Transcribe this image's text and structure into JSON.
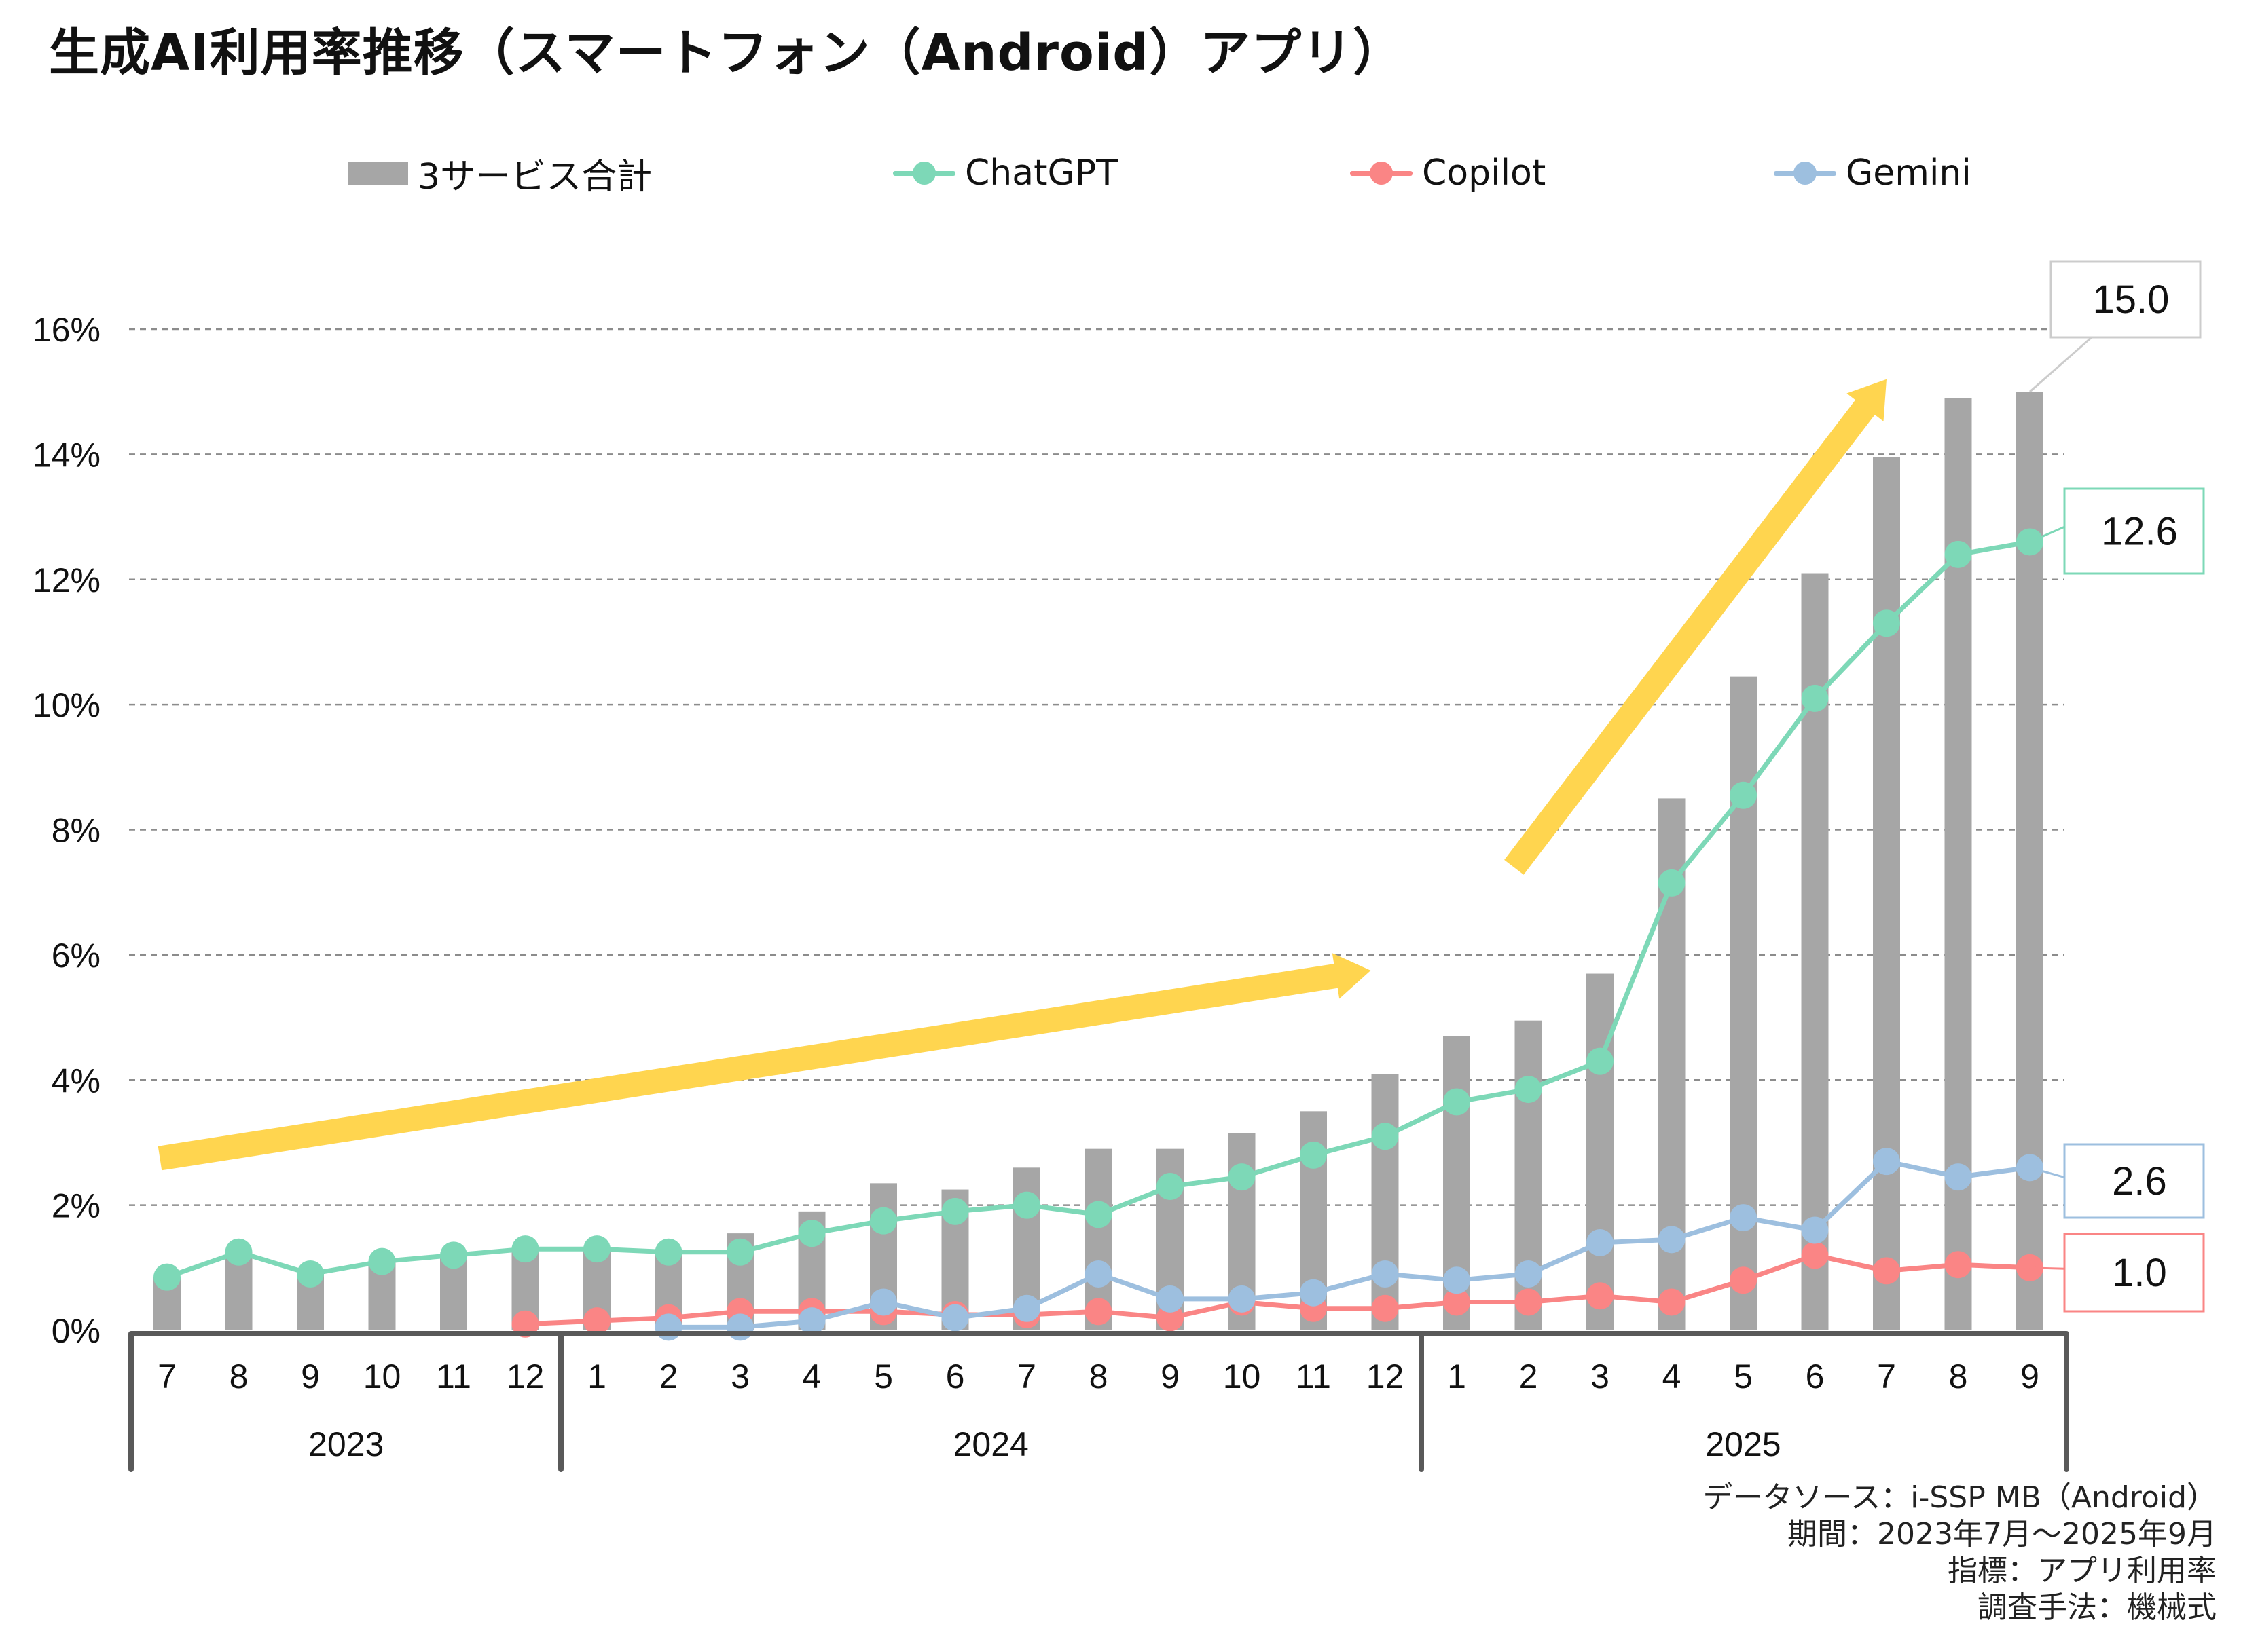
{
  "chart_data": {
    "type": "bar+line",
    "title": "生成AI利用率推移（スマートフォン（Android）アプリ）",
    "ylim": [
      0,
      16
    ],
    "yticks": [
      0,
      2,
      4,
      6,
      8,
      10,
      12,
      14,
      16
    ],
    "ytick_labels": [
      "0%",
      "2%",
      "4%",
      "6%",
      "8%",
      "10%",
      "12%",
      "14%",
      "16%"
    ],
    "grid": "dashed horizontal",
    "months": [
      "7",
      "8",
      "9",
      "10",
      "11",
      "12",
      "1",
      "2",
      "3",
      "4",
      "5",
      "6",
      "7",
      "8",
      "9",
      "10",
      "11",
      "12",
      "1",
      "2",
      "3",
      "4",
      "5",
      "6",
      "7",
      "8",
      "9"
    ],
    "years": [
      {
        "label": "2023",
        "start": 0,
        "end": 5
      },
      {
        "label": "2024",
        "start": 6,
        "end": 17
      },
      {
        "label": "2025",
        "start": 18,
        "end": 26
      }
    ],
    "legend": [
      {
        "name": "3サービス合計",
        "kind": "bar",
        "color": "#a6a6a6"
      },
      {
        "name": "ChatGPT",
        "kind": "line",
        "color": "#7dd8b7"
      },
      {
        "name": "Copilot",
        "kind": "line",
        "color": "#fa8585"
      },
      {
        "name": "Gemini",
        "kind": "line",
        "color": "#9dbfdf"
      }
    ],
    "series": [
      {
        "name": "3サービス合計",
        "kind": "bar",
        "color": "#a6a6a6",
        "values": [
          0.85,
          1.25,
          0.9,
          1.1,
          1.2,
          1.3,
          1.3,
          1.3,
          1.55,
          1.9,
          2.35,
          2.25,
          2.6,
          2.9,
          2.9,
          3.15,
          3.5,
          4.1,
          4.7,
          4.95,
          5.7,
          8.5,
          10.45,
          12.1,
          13.95,
          14.9,
          15.0
        ]
      },
      {
        "name": "ChatGPT",
        "kind": "line",
        "color": "#7dd8b7",
        "values": [
          0.85,
          1.25,
          0.9,
          1.1,
          1.2,
          1.3,
          1.3,
          1.25,
          1.25,
          1.55,
          1.75,
          1.9,
          2.0,
          1.85,
          2.3,
          2.45,
          2.8,
          3.1,
          3.65,
          3.85,
          4.3,
          7.15,
          8.55,
          10.1,
          11.3,
          12.4,
          12.6
        ]
      },
      {
        "name": "Copilot",
        "kind": "line",
        "color": "#fa8585",
        "values": [
          null,
          null,
          null,
          null,
          null,
          0.1,
          0.15,
          0.2,
          0.3,
          0.3,
          0.3,
          0.25,
          0.25,
          0.3,
          0.2,
          0.45,
          0.35,
          0.35,
          0.45,
          0.45,
          0.55,
          0.45,
          0.8,
          1.2,
          0.95,
          1.05,
          1.0
        ]
      },
      {
        "name": "Gemini",
        "kind": "line",
        "color": "#9dbfdf",
        "values": [
          null,
          null,
          null,
          null,
          null,
          null,
          null,
          0.05,
          0.05,
          0.15,
          0.45,
          0.2,
          0.35,
          0.9,
          0.5,
          0.5,
          0.6,
          0.9,
          0.8,
          0.9,
          1.4,
          1.45,
          1.8,
          1.6,
          2.7,
          2.45,
          2.6
        ]
      }
    ],
    "callouts": [
      {
        "series": "3サービス合計",
        "label": "15.0",
        "border": "#cccccc"
      },
      {
        "series": "ChatGPT",
        "label": "12.6",
        "border": "#7dd8b7"
      },
      {
        "series": "Gemini",
        "label": "2.6",
        "border": "#9dbfdf"
      },
      {
        "series": "Copilot",
        "label": "1.0",
        "border": "#fa8585"
      }
    ],
    "trend_arrows": [
      {
        "from": [
          -0.1,
          2.75
        ],
        "to": [
          16.8,
          5.75
        ],
        "color": "#ffd54f"
      },
      {
        "from": [
          18.8,
          7.4
        ],
        "to": [
          24.0,
          15.2
        ],
        "color": "#ffd54f"
      }
    ]
  },
  "source": {
    "line1": "データソース：i-SSP MB（Android）",
    "line2": "期間：2023年7月～2025年9月",
    "line3": "指標：アプリ利用率",
    "line4": "調査手法：機械式"
  }
}
